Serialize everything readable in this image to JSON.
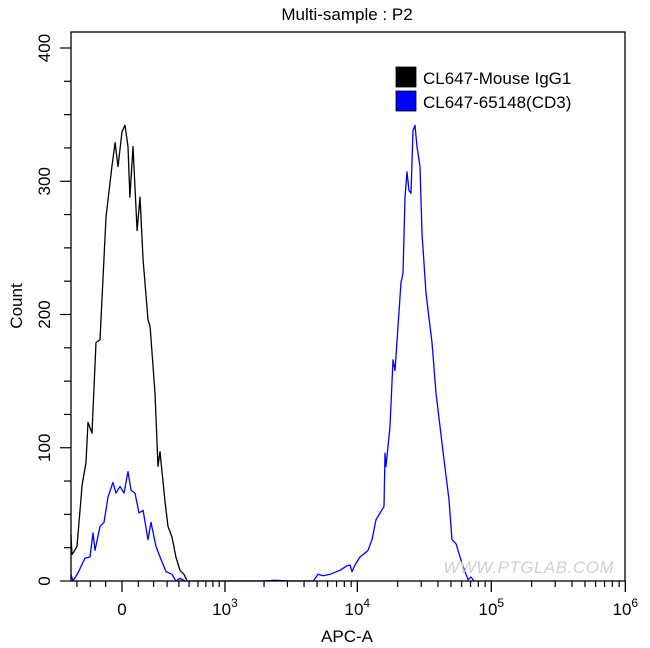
{
  "chart_data": {
    "type": "line",
    "title": "Multi-sample : P2",
    "xlabel": "APC-A",
    "ylabel": "Count",
    "x_scale": "biexponential",
    "xlim": [
      -350,
      1000000
    ],
    "ylim": [
      0,
      400
    ],
    "grid": false,
    "legend_position": "top-right",
    "x_ticks": [
      {
        "value": 0,
        "base": "0",
        "exp": ""
      },
      {
        "value": 1000,
        "base": "10",
        "exp": "3"
      },
      {
        "value": 10000,
        "base": "10",
        "exp": "4"
      },
      {
        "value": 100000,
        "base": "10",
        "exp": "5"
      },
      {
        "value": 1000000,
        "base": "10",
        "exp": "6"
      }
    ],
    "y_ticks": [
      0,
      100,
      200,
      300,
      400
    ],
    "watermark": "WWW.PTGLAB.COM",
    "series": [
      {
        "name": "CL647-Mouse IgG1",
        "color": "#000000",
        "points": [
          [
            -349,
            35
          ],
          [
            -340,
            20
          ],
          [
            -324,
            22
          ],
          [
            -299,
            26
          ],
          [
            -260,
            72
          ],
          [
            -231,
            89
          ],
          [
            -217,
            119
          ],
          [
            -189,
            111
          ],
          [
            -162,
            179
          ],
          [
            -136,
            181
          ],
          [
            -98,
            273
          ],
          [
            -61,
            311
          ],
          [
            -42,
            329
          ],
          [
            -24,
            311
          ],
          [
            0,
            337
          ],
          [
            18,
            342
          ],
          [
            36,
            326
          ],
          [
            48,
            288
          ],
          [
            67,
            326
          ],
          [
            92,
            263
          ],
          [
            110,
            288
          ],
          [
            130,
            241
          ],
          [
            162,
            196
          ],
          [
            176,
            191
          ],
          [
            210,
            141
          ],
          [
            231,
            86
          ],
          [
            246,
            97
          ],
          [
            284,
            59
          ],
          [
            307,
            41
          ],
          [
            340,
            33
          ],
          [
            374,
            18
          ],
          [
            411,
            8
          ],
          [
            449,
            5
          ],
          [
            480,
            0
          ]
        ]
      },
      {
        "name": "CL647-65148(CD3)",
        "color": "#0000ff",
        "points": [
          [
            -349,
            5
          ],
          [
            -332,
            0
          ],
          [
            -292,
            6
          ],
          [
            -239,
            17
          ],
          [
            -203,
            18
          ],
          [
            -182,
            36
          ],
          [
            -169,
            23
          ],
          [
            -136,
            41
          ],
          [
            -110,
            44
          ],
          [
            -85,
            63
          ],
          [
            -55,
            74
          ],
          [
            -36,
            66
          ],
          [
            -12,
            71
          ],
          [
            12,
            66
          ],
          [
            36,
            82
          ],
          [
            55,
            68
          ],
          [
            79,
            66
          ],
          [
            104,
            51
          ],
          [
            130,
            53
          ],
          [
            162,
            31
          ],
          [
            182,
            44
          ],
          [
            217,
            26
          ],
          [
            246,
            18
          ],
          [
            292,
            7
          ],
          [
            340,
            5
          ],
          [
            374,
            0
          ],
          [
            411,
            2
          ],
          [
            459,
            0
          ],
          [
            1970,
            0
          ],
          [
            2420,
            0.5
          ],
          [
            3140,
            0
          ],
          [
            3730,
            0
          ],
          [
            4670,
            0
          ],
          [
            5090,
            5
          ],
          [
            5550,
            4
          ],
          [
            6260,
            5
          ],
          [
            7430,
            8
          ],
          [
            8240,
            11
          ],
          [
            8830,
            12
          ],
          [
            9130,
            7
          ],
          [
            9610,
            12
          ],
          [
            10470,
            18
          ],
          [
            11420,
            21
          ],
          [
            12020,
            23
          ],
          [
            12880,
            31
          ],
          [
            13790,
            46
          ],
          [
            14780,
            51
          ],
          [
            15830,
            56
          ],
          [
            16090,
            96
          ],
          [
            16370,
            86
          ],
          [
            17550,
            116
          ],
          [
            18460,
            166
          ],
          [
            19120,
            158
          ],
          [
            20130,
            191
          ],
          [
            21200,
            224
          ],
          [
            21940,
            231
          ],
          [
            22710,
            288
          ],
          [
            23500,
            307
          ],
          [
            24310,
            293
          ],
          [
            25170,
            291
          ],
          [
            26050,
            338
          ],
          [
            26950,
            342
          ],
          [
            27900,
            326
          ],
          [
            29360,
            311
          ],
          [
            30410,
            261
          ],
          [
            32550,
            216
          ],
          [
            36090,
            179
          ],
          [
            38660,
            141
          ],
          [
            41430,
            116
          ],
          [
            44400,
            91
          ],
          [
            48380,
            61
          ],
          [
            50890,
            31
          ],
          [
            54540,
            28
          ],
          [
            58440,
            18
          ],
          [
            63670,
            7
          ],
          [
            67010,
            1
          ],
          [
            70590,
            3
          ],
          [
            74270,
            0
          ]
        ]
      }
    ]
  }
}
